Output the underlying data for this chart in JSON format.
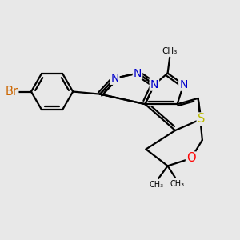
{
  "bg": "#e8e8e8",
  "bond_color": "#000000",
  "bw": 1.6,
  "atom_colors": {
    "N": "#0000cc",
    "S": "#bbbb00",
    "O": "#ff0000",
    "Br": "#cc6600"
  },
  "xlim": [
    -3.2,
    2.4
  ],
  "ylim": [
    -2.2,
    1.6
  ],
  "figsize": [
    3.0,
    3.0
  ],
  "dpi": 100
}
